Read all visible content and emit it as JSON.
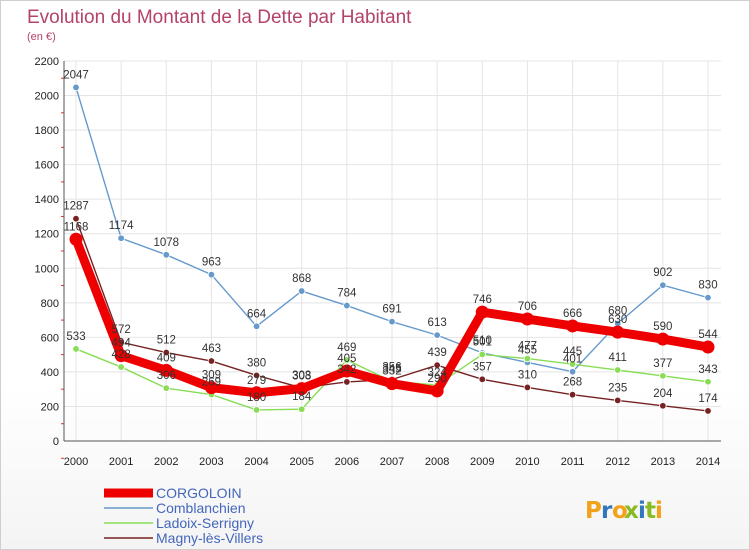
{
  "chart_data": {
    "type": "line",
    "title": "Evolution du Montant de la Dette par Habitant",
    "subtitle": "(en €)",
    "x": [
      "2000",
      "2001",
      "2002",
      "2003",
      "2004",
      "2005",
      "2006",
      "2007",
      "2008",
      "2009",
      "2010",
      "2011",
      "2012",
      "2013",
      "2014"
    ],
    "ylim": [
      0,
      2200
    ],
    "yticks": [
      0,
      200,
      400,
      600,
      800,
      1000,
      1200,
      1400,
      1600,
      1800,
      2000,
      2200
    ],
    "series": [
      {
        "name": "CORGOLOIN",
        "color": "#ee0000",
        "values": [
          1168,
          494,
          409,
          309,
          279,
          303,
          405,
          332,
          290,
          746,
          706,
          666,
          630,
          590,
          544
        ]
      },
      {
        "name": "Comblanchien",
        "color": "#6699cc",
        "values": [
          2047,
          1174,
          1078,
          963,
          664,
          868,
          784,
          691,
          613,
          510,
          455,
          401,
          680,
          902,
          830
        ]
      },
      {
        "name": "Ladoix-Serrigny",
        "color": "#88dd55",
        "values": [
          533,
          428,
          306,
          269,
          180,
          184,
          469,
          345,
          324,
          501,
          477,
          445,
          411,
          377,
          343
        ]
      },
      {
        "name": "Magny-lès-Villers",
        "color": "#772222",
        "values": [
          1287,
          572,
          512,
          463,
          380,
          308,
          342,
          356,
          439,
          357,
          310,
          268,
          235,
          204,
          174
        ]
      }
    ]
  },
  "logo": {
    "text": "Proxiti",
    "colors": [
      "#f2a218",
      "#3377bb",
      "#f2a218",
      "#88bb22",
      "#3377bb",
      "#88bb22",
      "#f2a218"
    ]
  }
}
